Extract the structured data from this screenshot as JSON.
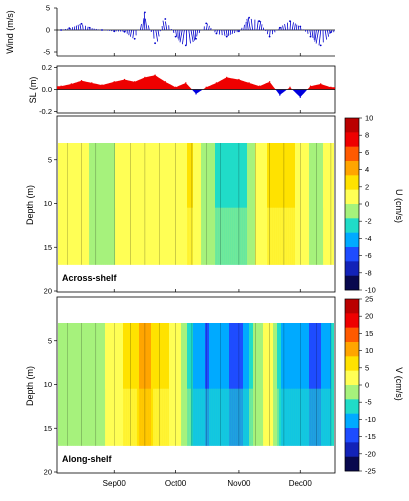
{
  "chart_data": [
    {
      "type": "line",
      "panel": "wind",
      "ylabel": "Wind (m/s)",
      "ylim": [
        -5,
        5
      ],
      "yticks": [
        "5",
        "0",
        "-5"
      ],
      "ytick_values": [
        5,
        0,
        -5
      ],
      "series_color": "#0000cc",
      "x": [
        "Aug 06",
        "Aug 10",
        "Aug 16",
        "Aug 20",
        "Aug 26",
        "Sep 01",
        "Sep 06",
        "Sep 11",
        "Sep 16",
        "Sep 21",
        "Sep 26",
        "Oct 01",
        "Oct 06",
        "Oct 11",
        "Oct 16",
        "Oct 21",
        "Oct 26",
        "Nov 01",
        "Nov 06",
        "Nov 11",
        "Nov 16",
        "Nov 21",
        "Nov 26",
        "Dec 01",
        "Dec 06",
        "Dec 11",
        "Dec 16"
      ],
      "values": [
        0,
        0.4,
        1.4,
        0.5,
        0,
        -0.3,
        -0.4,
        -2.0,
        4.0,
        -3.0,
        2.5,
        -1.5,
        -3.5,
        -2.0,
        1.5,
        -0.8,
        -1.5,
        -0.3,
        2.8,
        2.0,
        -1.5,
        0.5,
        2.0,
        0.8,
        -1.5,
        -3.5,
        -0.5
      ]
    },
    {
      "type": "area",
      "panel": "sea-level",
      "ylabel": "SL (m)",
      "ylim": [
        -0.2,
        0.2
      ],
      "yticks": [
        "0.2",
        "0.0",
        "-0.2"
      ],
      "ytick_values": [
        0.2,
        0,
        -0.2
      ],
      "positive_color": "#ee0000",
      "negative_color": "#0000dd",
      "x": [
        "Aug 06",
        "Aug 11",
        "Aug 16",
        "Aug 21",
        "Aug 26",
        "Sep 01",
        "Sep 06",
        "Sep 11",
        "Sep 16",
        "Sep 21",
        "Sep 26",
        "Oct 01",
        "Oct 06",
        "Oct 11",
        "Oct 16",
        "Oct 21",
        "Oct 26",
        "Nov 01",
        "Nov 06",
        "Nov 11",
        "Nov 16",
        "Nov 21",
        "Nov 26",
        "Dec 01",
        "Dec 06",
        "Dec 11",
        "Dec 16"
      ],
      "values": [
        0.03,
        0.05,
        0.08,
        0.06,
        0.04,
        0.07,
        0.09,
        0.07,
        0.11,
        0.13,
        0.07,
        0.02,
        0.06,
        -0.04,
        0.02,
        0.06,
        0.11,
        0.09,
        0.06,
        0.03,
        0.07,
        -0.05,
        0.02,
        -0.07,
        0.03,
        0.05,
        0.02
      ]
    },
    {
      "type": "heatmap",
      "panel": "across-shelf",
      "annotation": "Across-shelf",
      "ylabel": "Depth (m)",
      "ylim": [
        20,
        0
      ],
      "yticks": [
        "5",
        "10",
        "15",
        "20"
      ],
      "ytick_values": [
        5,
        10,
        15,
        20
      ],
      "depth_range": [
        2.5,
        17
      ],
      "colorbar_label": "U (cm/s)",
      "colorbar_ticks": [
        "10",
        "8",
        "6",
        "4",
        "2",
        "0",
        "-2",
        "-4",
        "-6",
        "-8",
        "-10"
      ],
      "colorbar_values": [
        10,
        8,
        6,
        4,
        2,
        0,
        -2,
        -4,
        -6,
        -8,
        -10
      ],
      "colorbar_colors": [
        "#ba0000",
        "#ee0000",
        "#ff5a00",
        "#ffa500",
        "#ffe200",
        "#ffff55",
        "#a6f27c",
        "#20dcc8",
        "#00aaff",
        "#1e4cff",
        "#1222b8",
        "#08084e"
      ],
      "x": [
        "Aug 09",
        "Aug 16",
        "Aug 23",
        "Sep 01",
        "Sep 09",
        "Sep 16",
        "Sep 23",
        "Oct 01",
        "Oct 09",
        "Oct 16",
        "Oct 23",
        "Nov 01",
        "Nov 09",
        "Nov 16",
        "Nov 23",
        "Dec 01",
        "Dec 09",
        "Dec 16"
      ],
      "values": [
        1,
        1,
        -1,
        0,
        1,
        0,
        1,
        1,
        2,
        -1,
        -2,
        -3,
        0,
        2,
        3,
        1,
        -1,
        1
      ]
    },
    {
      "type": "heatmap",
      "panel": "along-shelf",
      "annotation": "Along-shelf",
      "ylabel": "Depth (m)",
      "ylim": [
        20,
        0
      ],
      "yticks": [
        "5",
        "10",
        "15",
        "20"
      ],
      "ytick_values": [
        5,
        10,
        15,
        20
      ],
      "depth_range": [
        2.5,
        17
      ],
      "colorbar_label": "V (cm/s)",
      "colorbar_ticks": [
        "25",
        "20",
        "15",
        "10",
        "5",
        "0",
        "-5",
        "-10",
        "-15",
        "-20",
        "-25"
      ],
      "colorbar_values": [
        25,
        20,
        15,
        10,
        5,
        0,
        -5,
        -10,
        -15,
        -20,
        -25
      ],
      "colorbar_colors": [
        "#ba0000",
        "#ee0000",
        "#ff5a00",
        "#ffa500",
        "#ffe200",
        "#ffff55",
        "#a6f27c",
        "#20dcc8",
        "#00aaff",
        "#1e4cff",
        "#1222b8",
        "#08084e"
      ],
      "x": [
        "Aug 09",
        "Aug 16",
        "Aug 23",
        "Sep 01",
        "Sep 09",
        "Sep 16",
        "Sep 23",
        "Oct 01",
        "Oct 09",
        "Oct 16",
        "Oct 23",
        "Nov 01",
        "Nov 09",
        "Nov 16",
        "Nov 23",
        "Dec 01",
        "Dec 09",
        "Dec 16"
      ],
      "values": [
        0,
        -4,
        -2,
        2,
        6,
        10,
        6,
        3,
        -8,
        -13,
        -10,
        -15,
        -3,
        3,
        -12,
        -10,
        -15,
        -8
      ]
    }
  ],
  "x_tick_labels": [
    "Sep00",
    "Oct00",
    "Nov00",
    "Dec00"
  ],
  "x_tick_dates": [
    "Sep 01",
    "Oct 01",
    "Nov 01",
    "Dec 01"
  ]
}
